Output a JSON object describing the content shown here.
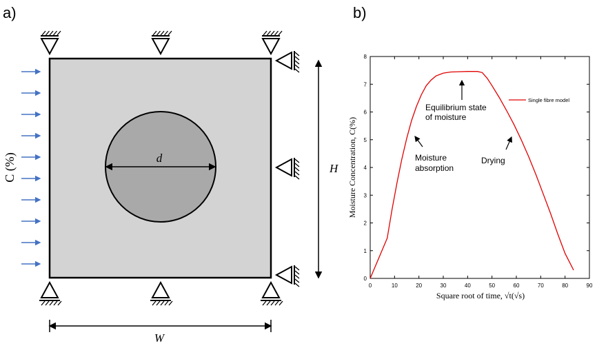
{
  "panel_a": {
    "label": "a)",
    "concentration_label": "C (%)",
    "diameter_label": "d",
    "height_label": "H",
    "width_label": "W",
    "colors": {
      "matrix_fill": "#d3d3d3",
      "fibre_fill": "#a9a9a9",
      "arrow": "#4472c4",
      "line": "#000000"
    }
  },
  "panel_b": {
    "label": "b)"
  },
  "chart_data": {
    "type": "line",
    "xlabel": "Square root of time, √t(√s)",
    "ylabel": "Moisture Concentration, C(%)",
    "xlim": [
      0,
      90
    ],
    "ylim": [
      0,
      8
    ],
    "xticks": [
      0,
      10,
      20,
      30,
      40,
      50,
      60,
      70,
      80,
      90
    ],
    "yticks": [
      0,
      1,
      2,
      3,
      4,
      5,
      6,
      7,
      8
    ],
    "grid": false,
    "legend_position": "top-right",
    "series": [
      {
        "name": "Single fibre model",
        "color": "#e00000",
        "x": [
          0,
          7,
          9,
          11,
          13,
          15,
          17,
          19,
          21,
          23,
          25,
          27,
          30,
          33,
          36,
          40,
          44,
          46,
          48,
          50,
          53,
          56,
          59,
          62,
          65,
          68,
          71,
          74,
          77,
          80,
          83.5
        ],
        "y": [
          0,
          1.45,
          2.5,
          3.45,
          4.3,
          5.05,
          5.7,
          6.2,
          6.62,
          6.95,
          7.15,
          7.3,
          7.4,
          7.44,
          7.45,
          7.46,
          7.46,
          7.42,
          7.22,
          6.95,
          6.52,
          6.05,
          5.55,
          5.0,
          4.4,
          3.75,
          3.05,
          2.35,
          1.6,
          0.9,
          0.3
        ]
      }
    ],
    "annotations": [
      {
        "text": [
          "Equilibrium state",
          "of moisture"
        ]
      },
      {
        "text": [
          "Moisture",
          "absorption"
        ]
      },
      {
        "text": [
          "Drying"
        ]
      }
    ]
  }
}
